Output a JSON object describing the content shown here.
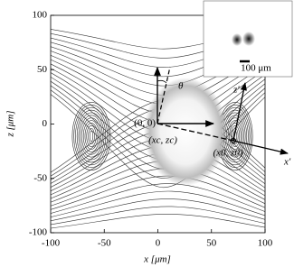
{
  "chart_data": {
    "type": "contour",
    "x_label": "x [μm]",
    "y_label": "z [μm]",
    "xlim": [
      -100,
      100
    ],
    "ylim": [
      -100,
      100
    ],
    "xticks": [
      -100,
      -50,
      0,
      50,
      100
    ],
    "yticks": [
      -100,
      -50,
      0,
      50,
      100
    ],
    "annotations": {
      "origin": "(0, 0)",
      "center": "(xc, zc)",
      "point": "(x0, z0)",
      "angle": "θ",
      "x_prime": "x′",
      "z_prime": "z′",
      "scale_bar": "100 μm"
    }
  }
}
